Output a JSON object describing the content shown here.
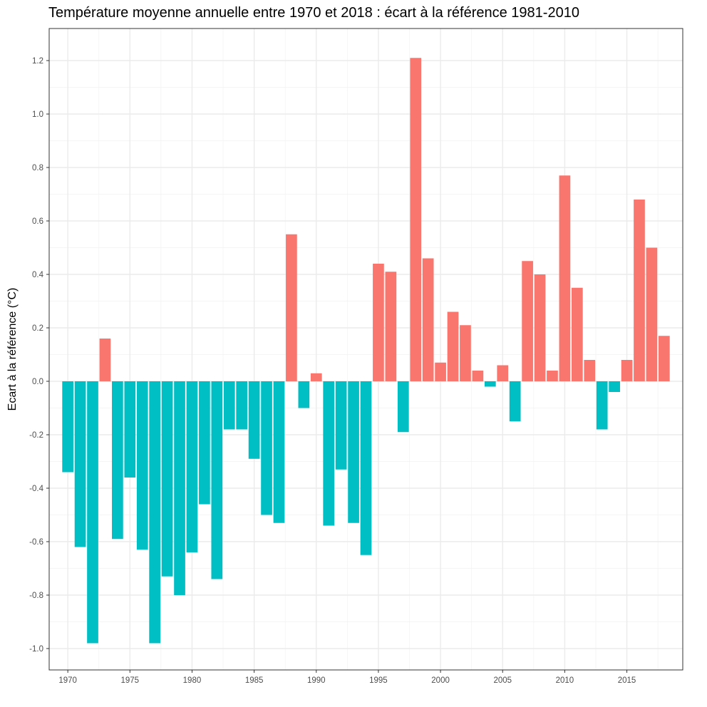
{
  "chart_data": {
    "type": "bar",
    "title": "Température moyenne annuelle entre 1970 et 2018 : écart à la référence 1981-2010",
    "xlabel": "",
    "ylabel": "Ecart à la référence (°C)",
    "x": [
      1970,
      1971,
      1972,
      1973,
      1974,
      1975,
      1976,
      1977,
      1978,
      1979,
      1980,
      1981,
      1982,
      1983,
      1984,
      1985,
      1986,
      1987,
      1988,
      1989,
      1990,
      1991,
      1992,
      1993,
      1994,
      1995,
      1996,
      1997,
      1998,
      1999,
      2000,
      2001,
      2002,
      2003,
      2004,
      2005,
      2006,
      2007,
      2008,
      2009,
      2010,
      2011,
      2012,
      2013,
      2014,
      2015,
      2016,
      2017,
      2018
    ],
    "values": [
      -0.34,
      -0.62,
      -0.98,
      0.16,
      -0.59,
      -0.36,
      -0.63,
      -0.98,
      -0.73,
      -0.8,
      -0.64,
      -0.46,
      -0.74,
      -0.18,
      -0.18,
      -0.29,
      -0.5,
      -0.53,
      0.55,
      -0.1,
      0.03,
      -0.54,
      -0.33,
      -0.53,
      -0.65,
      0.44,
      0.41,
      -0.19,
      1.21,
      0.46,
      0.07,
      0.26,
      0.21,
      0.04,
      -0.02,
      0.06,
      -0.15,
      0.45,
      0.4,
      0.04,
      0.77,
      0.35,
      0.08,
      -0.18,
      -0.04,
      0.08,
      0.68,
      0.5,
      0.17
    ],
    "xlim": [
      1968.5,
      2019.5
    ],
    "ylim": [
      -1.08,
      1.32
    ],
    "x_ticks": [
      1970,
      1975,
      1980,
      1985,
      1990,
      1995,
      2000,
      2005,
      2010,
      2015
    ],
    "x_tick_labels": [
      "1970",
      "1975",
      "1980",
      "1985",
      "1990",
      "1995",
      "2000",
      "2005",
      "2010",
      "2015"
    ],
    "y_ticks": [
      -1.0,
      -0.8,
      -0.6,
      -0.4,
      -0.2,
      0.0,
      0.2,
      0.4,
      0.6,
      0.8,
      1.0,
      1.2
    ],
    "y_tick_labels": [
      "-1.0",
      "-0.8",
      "-0.6",
      "-0.4",
      "-0.2",
      "0.0",
      "0.2",
      "0.4",
      "0.6",
      "0.8",
      "1.0",
      "1.2"
    ],
    "grid": true,
    "legend": "none",
    "colors": {
      "positive": "#f8766d",
      "negative": "#00bfc4"
    }
  }
}
